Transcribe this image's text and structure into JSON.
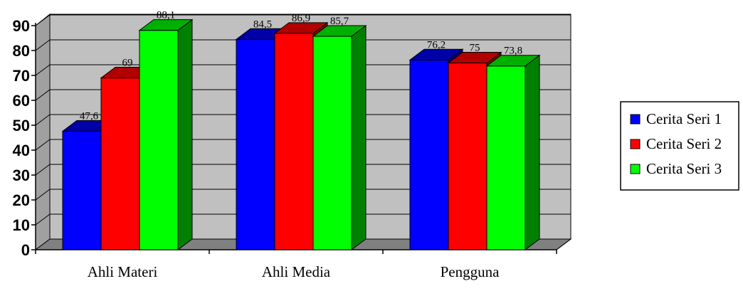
{
  "chart_data": {
    "type": "bar",
    "categories": [
      "Ahli Materi",
      "Ahli Media",
      "Pengguna"
    ],
    "series": [
      {
        "name": "Cerita Seri 1",
        "values": [
          47.6,
          84.5,
          76.2
        ],
        "labels": [
          "47,6",
          "84,5",
          "76,2"
        ],
        "color": "#0000ff",
        "side": "#000080",
        "top": "#0000a8"
      },
      {
        "name": "Cerita Seri 2",
        "values": [
          69,
          86.9,
          75
        ],
        "labels": [
          "69",
          "86,9",
          "75"
        ],
        "color": "#ff0000",
        "side": "#800000",
        "top": "#b00000"
      },
      {
        "name": "Cerita Seri 3",
        "values": [
          88.1,
          85.7,
          73.8
        ],
        "labels": [
          "88,1",
          "85,7",
          "73,8"
        ],
        "color": "#00ff00",
        "side": "#008000",
        "top": "#00b000"
      }
    ],
    "yticks": [
      "0",
      "10",
      "20",
      "30",
      "40",
      "50",
      "60",
      "70",
      "80",
      "90"
    ],
    "ylim": [
      0,
      90
    ],
    "grid": true,
    "legend_position": "right",
    "style": "3d-clustered-column",
    "wall_color": "#c0c0c0",
    "floor_color": "#808080"
  }
}
